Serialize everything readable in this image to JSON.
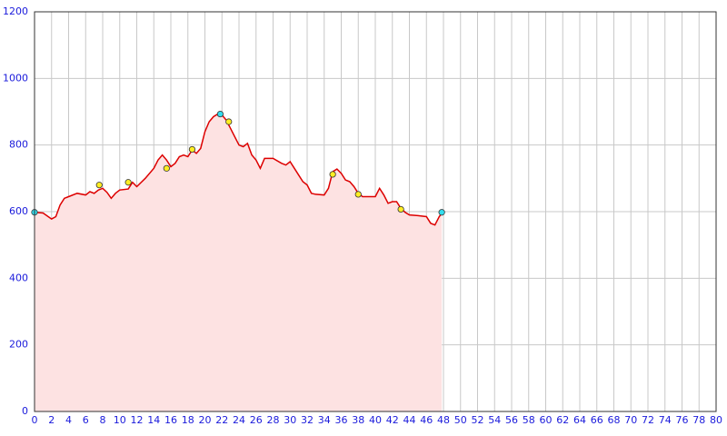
{
  "chart_data": {
    "type": "area",
    "x": [
      0,
      1,
      2,
      2.5,
      3,
      3.5,
      4,
      5,
      6,
      6.5,
      7,
      7.5,
      8,
      8.5,
      9,
      9.5,
      10,
      11,
      11.5,
      12,
      13,
      14,
      14.5,
      15,
      15.5,
      16,
      16.5,
      17,
      17.5,
      18,
      18.5,
      19,
      19.5,
      20,
      20.5,
      21,
      21.5,
      22,
      22.5,
      23,
      24,
      24.5,
      25,
      25.5,
      26,
      26.5,
      27,
      28,
      29,
      29.5,
      30,
      30.5,
      31,
      31.5,
      32,
      32.5,
      33,
      34,
      34.5,
      35,
      35.5,
      36,
      36.5,
      37,
      37.5,
      38,
      38.5,
      39,
      40,
      40.5,
      41,
      41.5,
      42,
      42.5,
      43,
      43.5,
      44,
      45,
      46,
      46.5,
      47,
      47.5,
      47.8
    ],
    "values": [
      598,
      596,
      578,
      585,
      620,
      640,
      645,
      655,
      650,
      660,
      655,
      665,
      670,
      658,
      640,
      655,
      665,
      668,
      688,
      675,
      700,
      730,
      755,
      770,
      755,
      735,
      745,
      765,
      770,
      765,
      785,
      775,
      790,
      840,
      870,
      885,
      893,
      890,
      875,
      850,
      800,
      795,
      805,
      770,
      755,
      730,
      760,
      760,
      745,
      740,
      750,
      730,
      710,
      690,
      680,
      655,
      652,
      650,
      670,
      720,
      728,
      715,
      695,
      690,
      675,
      655,
      645,
      645,
      645,
      670,
      650,
      625,
      630,
      630,
      610,
      598,
      590,
      588,
      585,
      565,
      560,
      585,
      595
    ],
    "color": "#dd0000",
    "fill": "#fde2e2",
    "markers": [
      {
        "color": "#33ddee",
        "x": [
          0,
          21.8,
          47.8
        ],
        "values": [
          598,
          893,
          598
        ]
      },
      {
        "color": "#ffee22",
        "x": [
          7.6,
          11,
          15.5,
          18.5,
          22.8,
          35,
          38,
          43
        ],
        "values": [
          680,
          688,
          730,
          787,
          870,
          712,
          652,
          607
        ]
      }
    ],
    "xlim": [
      0,
      80
    ],
    "xticks": [
      0,
      2,
      4,
      6,
      8,
      10,
      12,
      14,
      16,
      18,
      20,
      22,
      24,
      26,
      28,
      30,
      32,
      34,
      36,
      38,
      40,
      42,
      44,
      46,
      48,
      50,
      52,
      54,
      56,
      58,
      60,
      62,
      64,
      66,
      68,
      70,
      72,
      74,
      76,
      78,
      80
    ],
    "ylim": [
      0,
      1200
    ],
    "yticks": [
      0,
      200,
      400,
      600,
      800,
      1000,
      1200
    ],
    "grid": true
  }
}
